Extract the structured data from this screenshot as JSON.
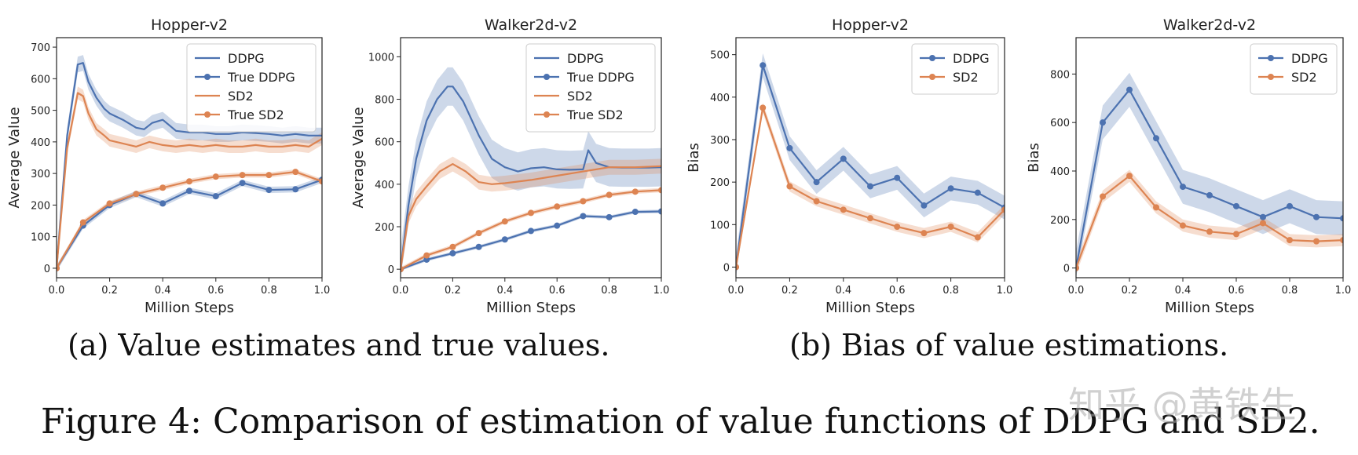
{
  "colors": {
    "blue": "#4c72b0",
    "orange": "#dd8452"
  },
  "captions": {
    "a": "(a) Value estimates and true values.",
    "b": "(b) Bias of value estimations.",
    "figure": "Figure 4: Comparison of estimation of value functions of DDPG and SD2."
  },
  "watermark": "知乎 @黄铁生",
  "chart_data": [
    {
      "type": "line",
      "title": "Hopper-v2",
      "xlabel": "Million Steps",
      "ylabel": "Average Value",
      "xlim": [
        0,
        1.0
      ],
      "ylim": [
        -30,
        730
      ],
      "xticks": [
        0.0,
        0.2,
        0.4,
        0.6,
        0.8,
        1.0
      ],
      "yticks": [
        0,
        100,
        200,
        300,
        400,
        500,
        600,
        700
      ],
      "legend_position": "top-right",
      "series": [
        {
          "name": "DDPG",
          "color": "#4c72b0",
          "markers": false,
          "band": 25,
          "x": [
            0,
            0.04,
            0.08,
            0.1,
            0.12,
            0.15,
            0.18,
            0.2,
            0.25,
            0.3,
            0.33,
            0.36,
            0.4,
            0.45,
            0.5,
            0.55,
            0.6,
            0.65,
            0.7,
            0.75,
            0.8,
            0.85,
            0.9,
            0.95,
            1.0
          ],
          "y": [
            0,
            420,
            645,
            650,
            590,
            540,
            505,
            490,
            470,
            445,
            440,
            460,
            470,
            435,
            430,
            430,
            425,
            425,
            430,
            428,
            425,
            420,
            425,
            420,
            420
          ]
        },
        {
          "name": "True DDPG",
          "color": "#4c72b0",
          "markers": true,
          "band": 10,
          "x": [
            0,
            0.1,
            0.2,
            0.3,
            0.4,
            0.5,
            0.6,
            0.7,
            0.8,
            0.9,
            1.0
          ],
          "y": [
            0,
            135,
            200,
            235,
            205,
            245,
            228,
            270,
            248,
            250,
            280
          ]
        },
        {
          "name": "SD2",
          "color": "#dd8452",
          "markers": false,
          "band": 20,
          "x": [
            0,
            0.04,
            0.08,
            0.1,
            0.12,
            0.15,
            0.18,
            0.2,
            0.25,
            0.3,
            0.35,
            0.4,
            0.45,
            0.5,
            0.55,
            0.6,
            0.65,
            0.7,
            0.75,
            0.8,
            0.85,
            0.9,
            0.95,
            1.0
          ],
          "y": [
            0,
            380,
            555,
            545,
            490,
            440,
            420,
            405,
            395,
            385,
            400,
            390,
            385,
            390,
            385,
            390,
            385,
            385,
            390,
            385,
            385,
            390,
            385,
            410
          ]
        },
        {
          "name": "True SD2",
          "color": "#dd8452",
          "markers": true,
          "band": 8,
          "x": [
            0,
            0.1,
            0.2,
            0.3,
            0.4,
            0.5,
            0.6,
            0.7,
            0.8,
            0.9,
            1.0
          ],
          "y": [
            0,
            145,
            205,
            235,
            255,
            275,
            290,
            295,
            295,
            305,
            275
          ]
        }
      ]
    },
    {
      "type": "line",
      "title": "Walker2d-v2",
      "xlabel": "Million Steps",
      "ylabel": "Average Value",
      "xlim": [
        0,
        1.0
      ],
      "ylim": [
        -40,
        1090
      ],
      "xticks": [
        0.0,
        0.2,
        0.4,
        0.6,
        0.8,
        1.0
      ],
      "yticks": [
        0,
        200,
        400,
        600,
        800,
        1000
      ],
      "legend_position": "top-right",
      "series": [
        {
          "name": "DDPG",
          "color": "#4c72b0",
          "markers": false,
          "band": 90,
          "x": [
            0,
            0.03,
            0.06,
            0.1,
            0.14,
            0.18,
            0.2,
            0.24,
            0.3,
            0.35,
            0.4,
            0.45,
            0.5,
            0.55,
            0.6,
            0.65,
            0.7,
            0.72,
            0.75,
            0.8,
            0.85,
            0.9,
            0.95,
            1.0
          ],
          "y": [
            0,
            300,
            520,
            700,
            800,
            860,
            860,
            790,
            630,
            520,
            480,
            460,
            475,
            480,
            470,
            468,
            470,
            560,
            500,
            480,
            478,
            478,
            478,
            480
          ]
        },
        {
          "name": "True DDPG",
          "color": "#4c72b0",
          "markers": true,
          "band": 8,
          "x": [
            0,
            0.1,
            0.2,
            0.3,
            0.4,
            0.5,
            0.6,
            0.7,
            0.8,
            0.9,
            1.0
          ],
          "y": [
            0,
            45,
            75,
            105,
            140,
            180,
            205,
            250,
            245,
            270,
            272
          ]
        },
        {
          "name": "SD2",
          "color": "#dd8452",
          "markers": false,
          "band": 35,
          "x": [
            0,
            0.03,
            0.06,
            0.1,
            0.15,
            0.2,
            0.25,
            0.3,
            0.35,
            0.4,
            0.5,
            0.6,
            0.7,
            0.8,
            0.9,
            1.0
          ],
          "y": [
            0,
            250,
            330,
            390,
            460,
            495,
            460,
            410,
            400,
            405,
            420,
            440,
            460,
            480,
            480,
            485
          ]
        },
        {
          "name": "True SD2",
          "color": "#dd8452",
          "markers": true,
          "band": 10,
          "x": [
            0,
            0.1,
            0.2,
            0.3,
            0.4,
            0.5,
            0.6,
            0.7,
            0.8,
            0.9,
            1.0
          ],
          "y": [
            0,
            65,
            105,
            170,
            225,
            265,
            295,
            320,
            350,
            365,
            372
          ]
        }
      ]
    },
    {
      "type": "line",
      "title": "Hopper-v2",
      "xlabel": "Million Steps",
      "ylabel": "Bias",
      "xlim": [
        0,
        1.0
      ],
      "ylim": [
        -25,
        540
      ],
      "xticks": [
        0.0,
        0.2,
        0.4,
        0.6,
        0.8,
        1.0
      ],
      "yticks": [
        0,
        100,
        200,
        300,
        400,
        500
      ],
      "legend_position": "top-right",
      "series": [
        {
          "name": "DDPG",
          "color": "#4c72b0",
          "markers": true,
          "band": 28,
          "x": [
            0,
            0.1,
            0.2,
            0.3,
            0.4,
            0.5,
            0.6,
            0.7,
            0.8,
            0.9,
            1.0
          ],
          "y": [
            0,
            475,
            280,
            200,
            255,
            190,
            210,
            145,
            185,
            175,
            140
          ]
        },
        {
          "name": "SD2",
          "color": "#dd8452",
          "markers": true,
          "band": 12,
          "x": [
            0,
            0.1,
            0.2,
            0.3,
            0.4,
            0.5,
            0.6,
            0.7,
            0.8,
            0.9,
            1.0
          ],
          "y": [
            0,
            375,
            190,
            155,
            135,
            115,
            95,
            80,
            95,
            70,
            135
          ]
        }
      ]
    },
    {
      "type": "line",
      "title": "Walker2d-v2",
      "xlabel": "Million Steps",
      "ylabel": "Bias",
      "xlim": [
        0,
        1.0
      ],
      "ylim": [
        -40,
        950
      ],
      "xticks": [
        0.0,
        0.2,
        0.4,
        0.6,
        0.8,
        1.0
      ],
      "yticks": [
        0,
        200,
        400,
        600,
        800
      ],
      "legend_position": "top-right",
      "series": [
        {
          "name": "DDPG",
          "color": "#4c72b0",
          "markers": true,
          "band": 70,
          "x": [
            0,
            0.1,
            0.2,
            0.3,
            0.4,
            0.5,
            0.6,
            0.7,
            0.8,
            0.9,
            1.0
          ],
          "y": [
            0,
            600,
            735,
            535,
            335,
            300,
            255,
            210,
            255,
            210,
            205
          ]
        },
        {
          "name": "SD2",
          "color": "#dd8452",
          "markers": true,
          "band": 25,
          "x": [
            0,
            0.1,
            0.2,
            0.3,
            0.4,
            0.5,
            0.6,
            0.7,
            0.8,
            0.9,
            1.0
          ],
          "y": [
            0,
            295,
            380,
            250,
            175,
            150,
            140,
            185,
            115,
            110,
            115
          ]
        }
      ]
    }
  ]
}
